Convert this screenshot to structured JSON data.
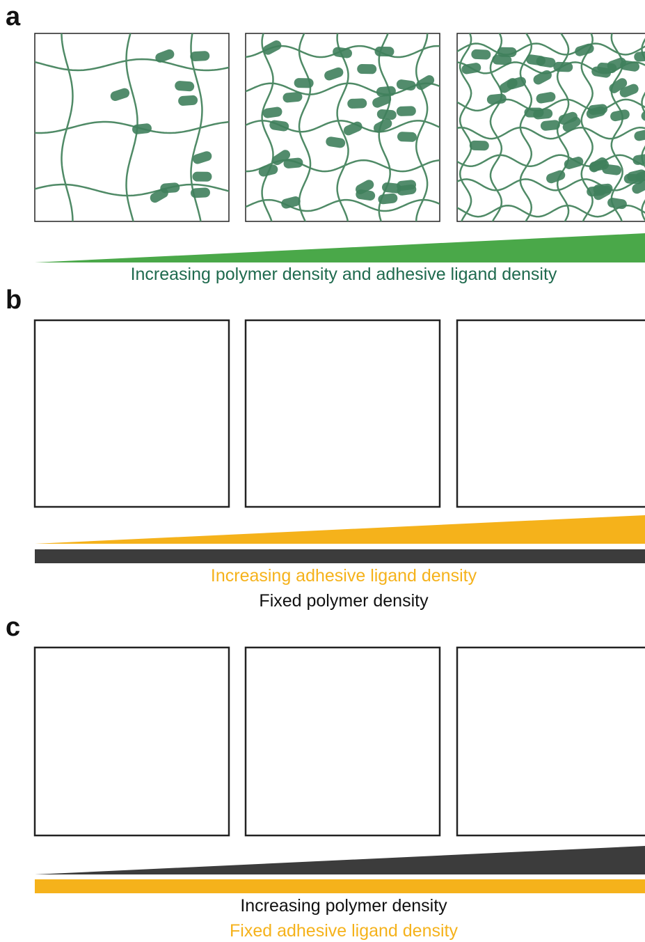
{
  "panels": [
    {
      "label": "a",
      "captions": [
        "Increasing polymer density and adhesive ligand density"
      ]
    },
    {
      "label": "b",
      "captions": [
        "Increasing adhesive ligand density",
        "Fixed polymer density"
      ]
    },
    {
      "label": "c",
      "captions": [
        "Increasing polymer density",
        "Fixed adhesive ligand density"
      ]
    }
  ]
}
